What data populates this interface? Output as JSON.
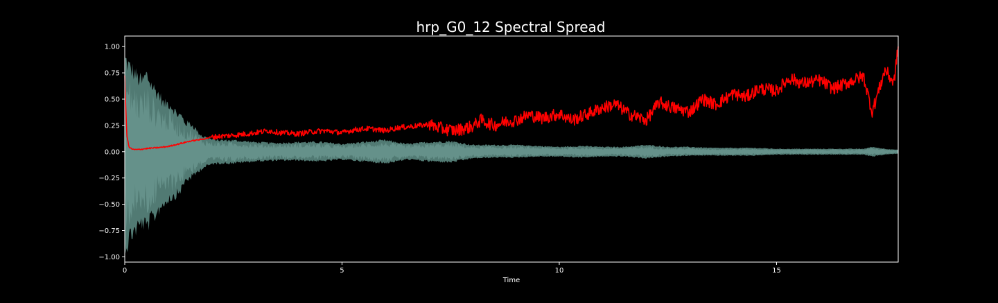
{
  "chart_data": {
    "type": "line",
    "title": "hrp_G0_12 Spectral Spread",
    "xlabel": "Time",
    "ylabel": "",
    "xlim": [
      0,
      17.8
    ],
    "ylim": [
      -1.05,
      1.1
    ],
    "x_ticks": [
      {
        "value": 0,
        "label": "0"
      },
      {
        "value": 5,
        "label": "5"
      },
      {
        "value": 10,
        "label": "10"
      },
      {
        "value": 15,
        "label": "15"
      }
    ],
    "y_ticks": [
      {
        "value": 1.0,
        "label": "1.00"
      },
      {
        "value": 0.75,
        "label": "0.75"
      },
      {
        "value": 0.5,
        "label": "0.50"
      },
      {
        "value": 0.25,
        "label": "0.25"
      },
      {
        "value": 0.0,
        "label": "0.00"
      },
      {
        "value": -0.25,
        "label": "−0.25"
      },
      {
        "value": -0.5,
        "label": "−0.50"
      },
      {
        "value": -0.75,
        "label": "−0.75"
      },
      {
        "value": -1.0,
        "label": "−1.00"
      }
    ],
    "grid": false,
    "colors": {
      "background": "#000000",
      "axes": "#ffffff",
      "text": "#ffffff",
      "waveform": "#5f8f87",
      "waveform_light": "#8cbdb4",
      "spread_line": "#ff0000"
    },
    "series": [
      {
        "kind": "waveform-envelope",
        "x": [
          0,
          0.05,
          0.1,
          0.2,
          0.3,
          0.4,
          0.5,
          0.6,
          0.7,
          0.8,
          0.9,
          1.0,
          1.1,
          1.2,
          1.3,
          1.4,
          1.5,
          1.6,
          1.7,
          1.8,
          1.9,
          2.0,
          2.2,
          2.5,
          3.0,
          3.5,
          4.0,
          4.5,
          5.0,
          5.5,
          6.0,
          6.5,
          7.0,
          7.5,
          8.0,
          8.5,
          9.0,
          9.5,
          10.0,
          10.5,
          11.0,
          11.5,
          12.0,
          12.5,
          13.0,
          13.5,
          14.0,
          14.5,
          15.0,
          15.5,
          16.0,
          16.5,
          17.0,
          17.2,
          17.5,
          17.8
        ],
        "upper": [
          0.98,
          0.95,
          0.9,
          0.85,
          0.78,
          0.74,
          0.82,
          0.72,
          0.65,
          0.6,
          0.5,
          0.52,
          0.47,
          0.4,
          0.38,
          0.3,
          0.3,
          0.26,
          0.2,
          0.16,
          0.15,
          0.13,
          0.12,
          0.12,
          0.1,
          0.09,
          0.1,
          0.1,
          0.08,
          0.1,
          0.12,
          0.08,
          0.1,
          0.11,
          0.07,
          0.07,
          0.07,
          0.06,
          0.05,
          0.06,
          0.05,
          0.05,
          0.07,
          0.05,
          0.05,
          0.04,
          0.04,
          0.04,
          0.03,
          0.03,
          0.03,
          0.03,
          0.03,
          0.05,
          0.03,
          0.02
        ],
        "lower": [
          -0.95,
          -1.0,
          -0.9,
          -0.85,
          -0.8,
          -0.75,
          -0.8,
          -0.72,
          -0.68,
          -0.6,
          -0.55,
          -0.5,
          -0.48,
          -0.45,
          -0.4,
          -0.3,
          -0.28,
          -0.25,
          -0.2,
          -0.17,
          -0.15,
          -0.13,
          -0.12,
          -0.12,
          -0.1,
          -0.09,
          -0.09,
          -0.1,
          -0.08,
          -0.1,
          -0.12,
          -0.08,
          -0.1,
          -0.11,
          -0.07,
          -0.06,
          -0.06,
          -0.05,
          -0.05,
          -0.06,
          -0.05,
          -0.05,
          -0.07,
          -0.05,
          -0.04,
          -0.04,
          -0.04,
          -0.04,
          -0.03,
          -0.03,
          -0.03,
          -0.03,
          -0.03,
          -0.05,
          -0.03,
          -0.02
        ]
      },
      {
        "kind": "spectral-spread",
        "x": [
          0,
          0.02,
          0.05,
          0.1,
          0.2,
          0.3,
          0.5,
          0.8,
          1.0,
          1.2,
          1.5,
          1.8,
          2.0,
          2.3,
          2.6,
          3.0,
          3.3,
          3.6,
          4.0,
          4.3,
          4.6,
          5.0,
          5.3,
          5.6,
          6.0,
          6.3,
          6.6,
          7.0,
          7.3,
          7.6,
          8.0,
          8.2,
          8.5,
          8.8,
          9.0,
          9.3,
          9.6,
          10.0,
          10.3,
          10.6,
          11.0,
          11.3,
          11.6,
          12.0,
          12.3,
          12.6,
          13.0,
          13.3,
          13.6,
          14.0,
          14.3,
          14.6,
          15.0,
          15.3,
          15.6,
          16.0,
          16.3,
          16.6,
          17.0,
          17.2,
          17.5,
          17.7,
          17.8
        ],
        "y": [
          0.72,
          0.45,
          0.15,
          0.04,
          0.02,
          0.02,
          0.03,
          0.04,
          0.05,
          0.07,
          0.1,
          0.12,
          0.14,
          0.15,
          0.16,
          0.18,
          0.2,
          0.18,
          0.17,
          0.19,
          0.2,
          0.18,
          0.21,
          0.22,
          0.2,
          0.23,
          0.24,
          0.26,
          0.22,
          0.2,
          0.24,
          0.3,
          0.25,
          0.29,
          0.3,
          0.35,
          0.32,
          0.36,
          0.3,
          0.35,
          0.42,
          0.45,
          0.36,
          0.3,
          0.47,
          0.42,
          0.38,
          0.5,
          0.45,
          0.55,
          0.52,
          0.6,
          0.58,
          0.7,
          0.65,
          0.68,
          0.6,
          0.65,
          0.72,
          0.38,
          0.78,
          0.65,
          1.0
        ]
      }
    ]
  }
}
